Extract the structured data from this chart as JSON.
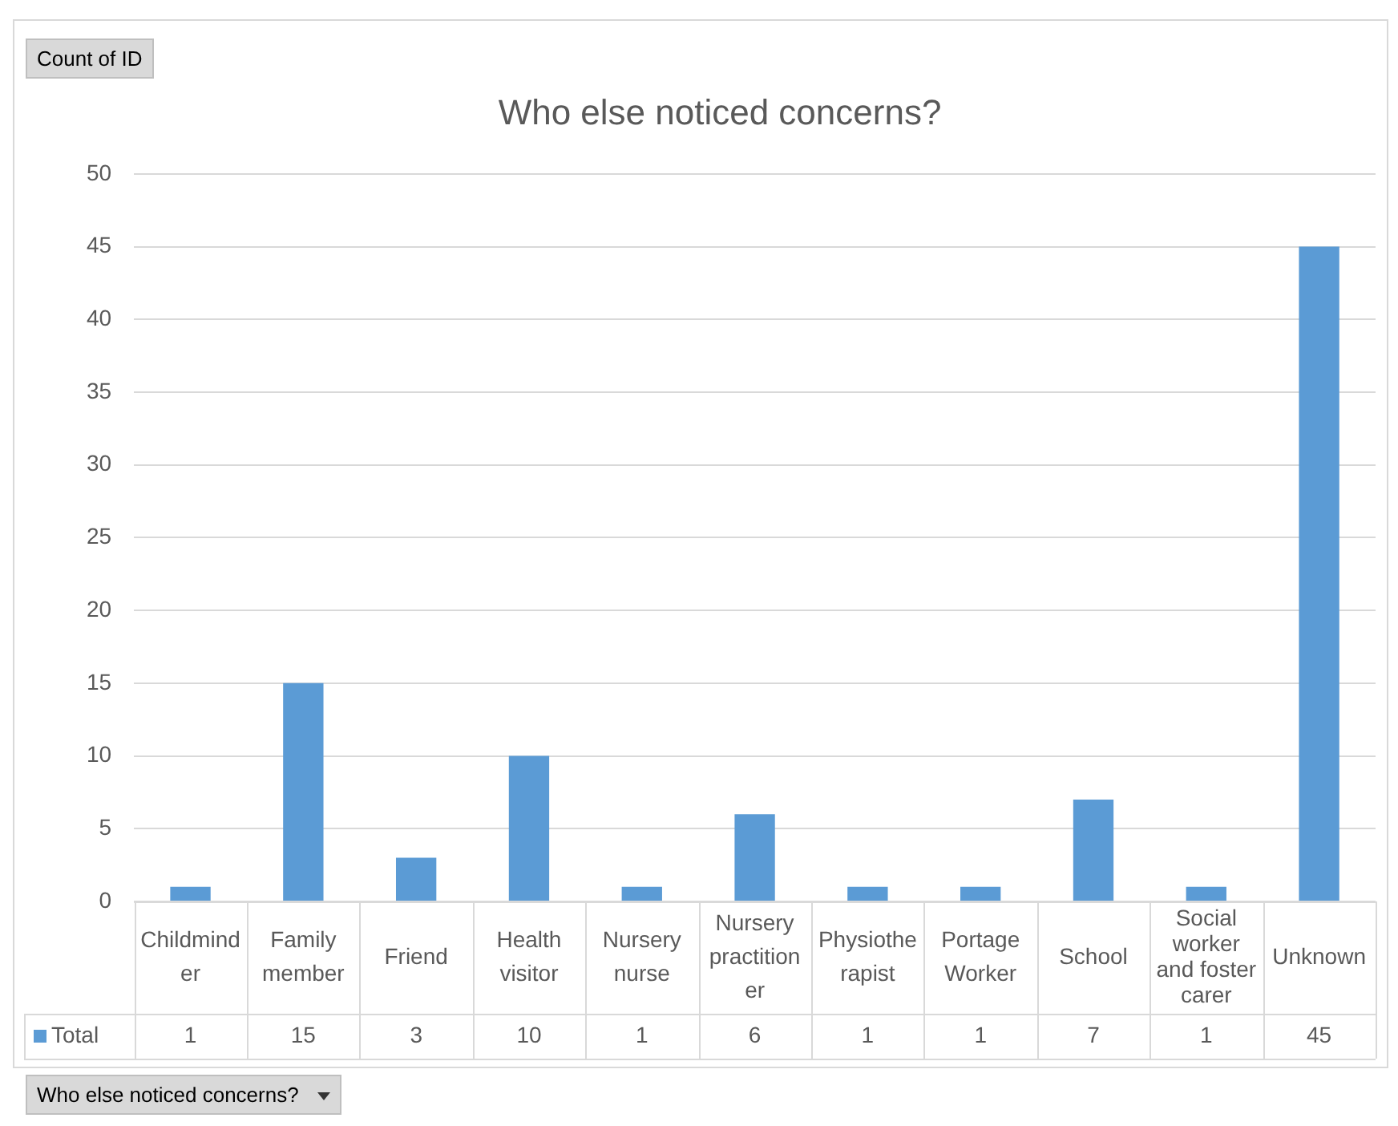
{
  "chart_data": {
    "type": "bar",
    "title": "Who else noticed concerns?",
    "categories": [
      "Childminder",
      "Family member",
      "Friend",
      "Health visitor",
      "Nursery nurse",
      "Nursery practitioner",
      "Physiotherapist",
      "Portage Worker",
      "School",
      "Social worker and foster carer",
      "Unknown"
    ],
    "series": [
      {
        "name": "Total",
        "color": "#5b9bd5",
        "values": [
          1,
          15,
          3,
          10,
          1,
          6,
          1,
          1,
          7,
          1,
          45
        ]
      }
    ],
    "ylim": [
      0,
      50
    ],
    "yticks": [
      0,
      5,
      10,
      15,
      20,
      25,
      30,
      35,
      40,
      45,
      50
    ],
    "grid": "y",
    "legend": "bottom",
    "data_labels": true,
    "annotations": [
      "Count of ID",
      "Who else noticed concerns?"
    ]
  }
}
